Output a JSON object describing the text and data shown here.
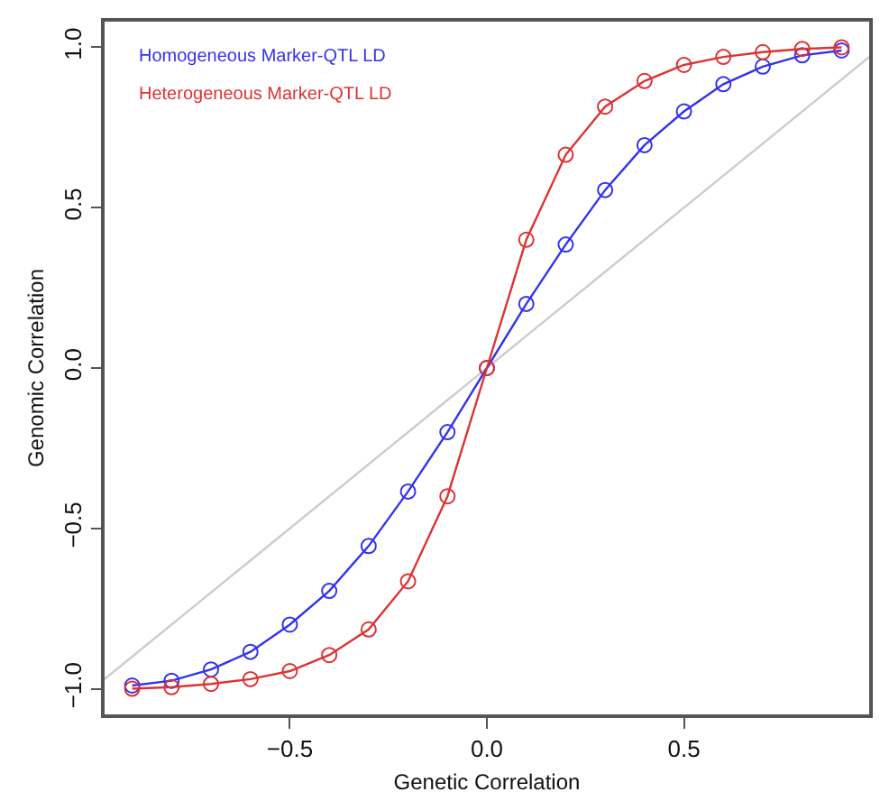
{
  "chart_data": {
    "type": "line",
    "xlabel": "Genetic Correlation",
    "ylabel": "Genomic Correlation",
    "x": [
      -0.9,
      -0.8,
      -0.7,
      -0.6,
      -0.5,
      -0.4,
      -0.3,
      -0.2,
      -0.1,
      0,
      0.1,
      0.2,
      0.3,
      0.4,
      0.5,
      0.6,
      0.7,
      0.8,
      0.9
    ],
    "series": [
      {
        "x": [
          -0.97,
          0.97
        ],
        "color": "#cccccc",
        "marker": "none",
        "values": [
          -0.97,
          0.97
        ]
      },
      {
        "name": "Homogeneous Marker-QTL LD",
        "color": "#3333ee",
        "values": [
          -0.99,
          -0.975,
          -0.94,
          -0.885,
          -0.8,
          -0.695,
          -0.555,
          -0.385,
          -0.2,
          0,
          0.2,
          0.385,
          0.555,
          0.695,
          0.8,
          0.885,
          0.94,
          0.975,
          0.99
        ]
      },
      {
        "name": "Heterogeneous Marker-QTL LD",
        "color": "#dd3333",
        "values": [
          -1.0,
          -0.995,
          -0.985,
          -0.97,
          -0.945,
          -0.895,
          -0.815,
          -0.665,
          -0.4,
          0,
          0.4,
          0.665,
          0.815,
          0.895,
          0.945,
          0.97,
          0.985,
          0.995,
          1.0
        ]
      }
    ],
    "xlim": [
      -0.97,
      0.97
    ],
    "ylim": [
      -1.08,
      1.08
    ],
    "xticks": [
      {
        "value": -0.5,
        "label": "−0.5"
      },
      {
        "value": 0,
        "label": "0.0"
      },
      {
        "value": 0.5,
        "label": "0.5"
      }
    ],
    "yticks": [
      {
        "value": -1,
        "label": "−1.0"
      },
      {
        "value": -0.5,
        "label": "−0.5"
      },
      {
        "value": 0,
        "label": "0.0"
      },
      {
        "value": 0.5,
        "label": "0.5"
      },
      {
        "value": 1,
        "label": "1.0"
      }
    ],
    "legend": "top left",
    "marker": "circle",
    "line_style": "solid"
  }
}
